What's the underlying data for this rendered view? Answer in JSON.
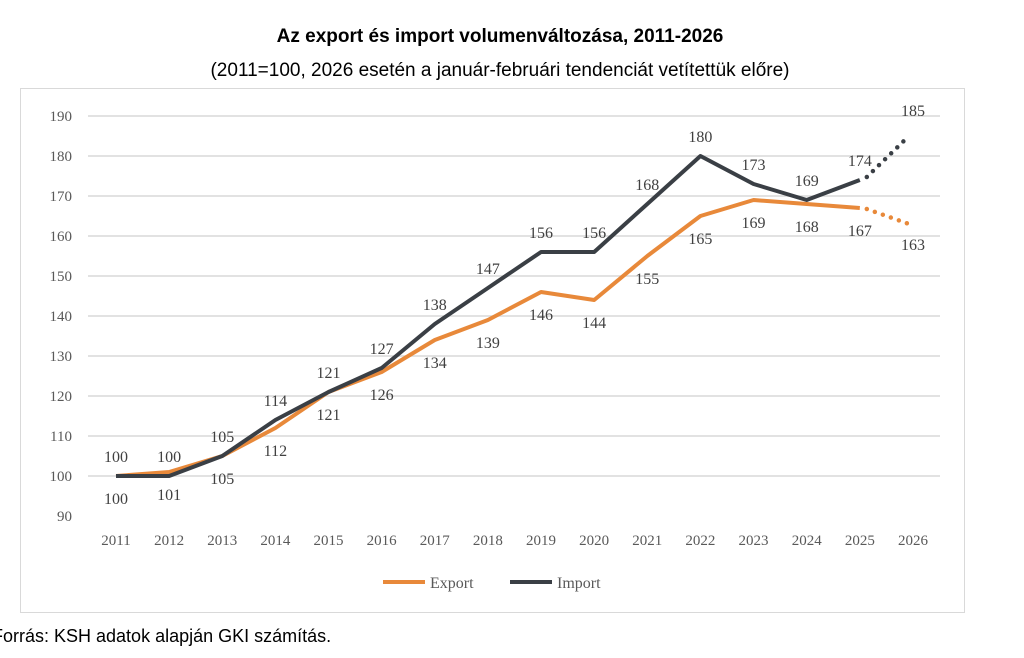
{
  "chart_data": {
    "type": "line",
    "title": "Az export és import volumenváltozása, 2011-2026",
    "subtitle": "(2011=100, 2026 esetén a január-februári tendenciát vetítettük előre)",
    "x": [
      "2011",
      "2012",
      "2013",
      "2014",
      "2015",
      "2016",
      "2017",
      "2018",
      "2019",
      "2020",
      "2021",
      "2022",
      "2023",
      "2024",
      "2025",
      "2026"
    ],
    "ylim": [
      90,
      190
    ],
    "yticks": [
      90,
      100,
      110,
      120,
      130,
      140,
      150,
      160,
      170,
      180,
      190
    ],
    "grid": true,
    "legend_position": "bottom",
    "projected_from": "2025",
    "series": [
      {
        "name": "Export",
        "color": "#e8893a",
        "values": [
          100,
          101,
          105,
          112,
          121,
          126,
          134,
          139,
          146,
          144,
          155,
          165,
          169,
          168,
          167,
          163
        ]
      },
      {
        "name": "Import",
        "color": "#3a3f45",
        "values": [
          100,
          100,
          105,
          114,
          121,
          127,
          138,
          147,
          156,
          156,
          168,
          180,
          173,
          169,
          174,
          185
        ]
      }
    ]
  },
  "source": "Forrás: KSH adatok alapján GKI számítás."
}
